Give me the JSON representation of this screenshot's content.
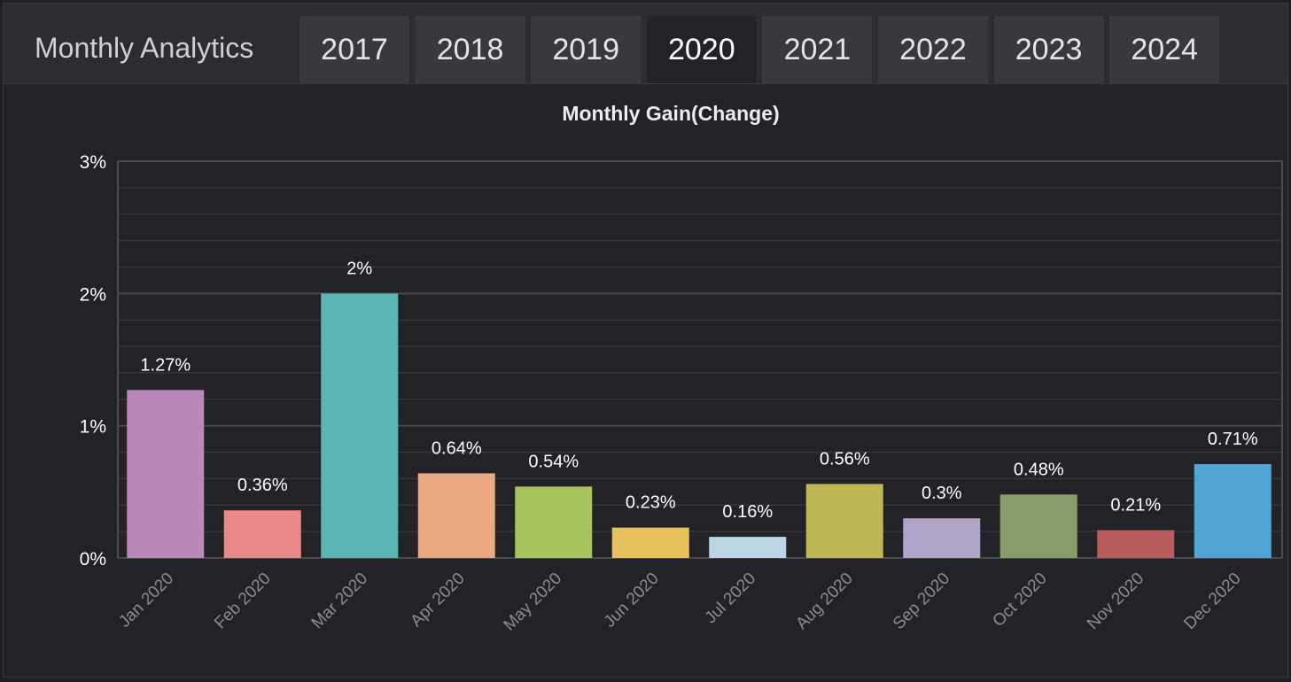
{
  "header": {
    "title": "Monthly Analytics",
    "tabs": [
      {
        "label": "2017",
        "active": false
      },
      {
        "label": "2018",
        "active": false
      },
      {
        "label": "2019",
        "active": false
      },
      {
        "label": "2020",
        "active": true
      },
      {
        "label": "2021",
        "active": false
      },
      {
        "label": "2022",
        "active": false
      },
      {
        "label": "2023",
        "active": false
      },
      {
        "label": "2024",
        "active": false
      }
    ]
  },
  "colors": {
    "background": "#232327",
    "tab": "#38383e",
    "gridline": "#3a3a40",
    "axis": "#4a4a50",
    "text": "#ffffff"
  },
  "chart_data": {
    "type": "bar",
    "title": "Monthly Gain(Change)",
    "xlabel": "",
    "ylabel": "",
    "categories": [
      "Jan 2020",
      "Feb 2020",
      "Mar 2020",
      "Apr 2020",
      "May 2020",
      "Jun 2020",
      "Jul 2020",
      "Aug 2020",
      "Sep 2020",
      "Oct 2020",
      "Nov 2020",
      "Dec 2020"
    ],
    "values": [
      1.27,
      0.36,
      2,
      0.64,
      0.54,
      0.23,
      0.16,
      0.56,
      0.3,
      0.48,
      0.21,
      0.71
    ],
    "value_labels": [
      "1.27%",
      "0.36%",
      "2%",
      "0.64%",
      "0.54%",
      "0.23%",
      "0.16%",
      "0.56%",
      "0.3%",
      "0.48%",
      "0.21%",
      "0.71%"
    ],
    "bar_colors": [
      "#b987b8",
      "#e88a88",
      "#5ab5b5",
      "#eba982",
      "#a8c45c",
      "#e6c15d",
      "#bcd6e8",
      "#bfb656",
      "#b0a4c8",
      "#879e6c",
      "#b85c5d",
      "#52a4d4"
    ],
    "ylim": [
      0,
      3
    ],
    "yticks": [
      0,
      1,
      2,
      3
    ],
    "ytick_labels": [
      "0%",
      "1%",
      "2%",
      "3%"
    ],
    "grid": true,
    "legend": "none"
  }
}
